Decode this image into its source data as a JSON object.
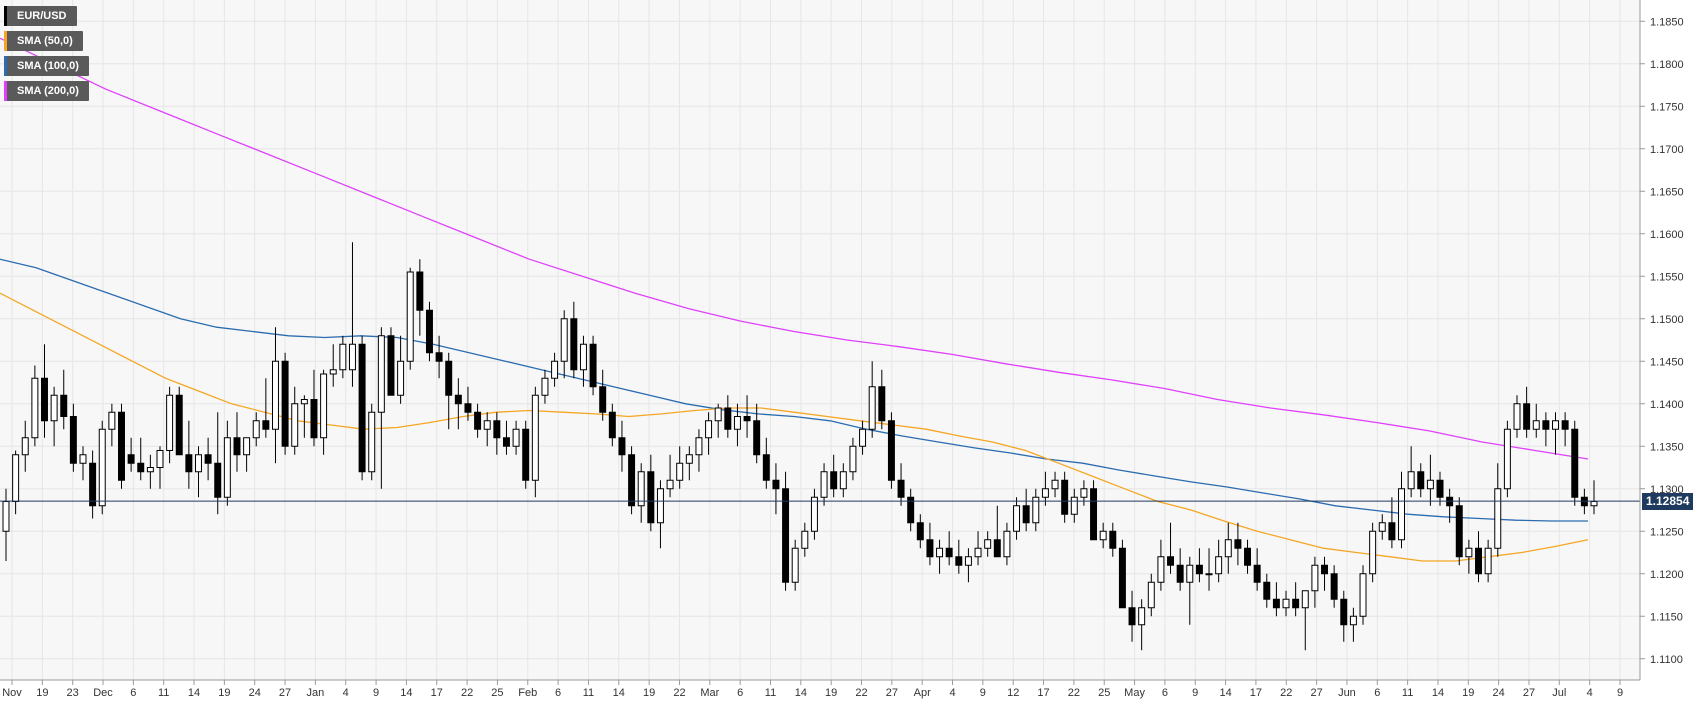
{
  "chart_data": {
    "type": "candlestick",
    "symbol": "EUR/USD",
    "ylim": [
      1.1075,
      1.1875
    ],
    "y_ticks": [
      "1.1100",
      "1.1150",
      "1.1200",
      "1.1250",
      "1.1300",
      "1.1350",
      "1.1400",
      "1.1450",
      "1.1500",
      "1.1550",
      "1.1600",
      "1.1650",
      "1.1700",
      "1.1750",
      "1.1800",
      "1.1850"
    ],
    "x_ticks": [
      "Nov",
      "19",
      "23",
      "Dec",
      "6",
      "11",
      "14",
      "19",
      "24",
      "27",
      "Jan",
      "4",
      "9",
      "14",
      "17",
      "22",
      "25",
      "Feb",
      "6",
      "11",
      "14",
      "19",
      "22",
      "Mar",
      "6",
      "11",
      "14",
      "19",
      "22",
      "27",
      "Apr",
      "4",
      "9",
      "12",
      "17",
      "22",
      "25",
      "May",
      "6",
      "9",
      "14",
      "17",
      "22",
      "27",
      "Jun",
      "6",
      "11",
      "14",
      "19",
      "24",
      "27",
      "Jul",
      "4",
      "9"
    ],
    "current_price": "1.12854",
    "grid": true,
    "legend": [
      {
        "label": "EUR/USD",
        "color": "#000000"
      },
      {
        "label": "SMA (50,0)",
        "color": "#f5a623"
      },
      {
        "label": "SMA (100,0)",
        "color": "#2b6cb0"
      },
      {
        "label": "SMA (200,0)",
        "color": "#e040fb"
      }
    ],
    "colors": {
      "up": "#ffffff",
      "down": "#000000",
      "wick": "#000000",
      "sma50": "#f5a623",
      "sma100": "#2b6cb0",
      "sma200": "#e040fb",
      "price_line": "#1e3a5f",
      "grid": "#e6e6e6",
      "background": "#f7f7f7"
    },
    "candles": [
      [
        1.125,
        1.13,
        1.1215,
        1.1285
      ],
      [
        1.1285,
        1.1345,
        1.127,
        1.134
      ],
      [
        1.134,
        1.138,
        1.132,
        1.136
      ],
      [
        1.136,
        1.1445,
        1.135,
        1.143
      ],
      [
        1.143,
        1.147,
        1.136,
        1.138
      ],
      [
        1.138,
        1.142,
        1.135,
        1.141
      ],
      [
        1.141,
        1.144,
        1.137,
        1.1385
      ],
      [
        1.1385,
        1.14,
        1.132,
        1.133
      ],
      [
        1.133,
        1.135,
        1.131,
        1.134
      ],
      [
        1.133,
        1.1345,
        1.1265,
        1.128
      ],
      [
        1.128,
        1.138,
        1.127,
        1.137
      ],
      [
        1.137,
        1.14,
        1.135,
        1.139
      ],
      [
        1.139,
        1.14,
        1.13,
        1.131
      ],
      [
        1.134,
        1.136,
        1.132,
        1.133
      ],
      [
        1.133,
        1.136,
        1.131,
        1.132
      ],
      [
        1.132,
        1.134,
        1.13,
        1.1325
      ],
      [
        1.1325,
        1.135,
        1.13,
        1.1345
      ],
      [
        1.1345,
        1.142,
        1.133,
        1.141
      ],
      [
        1.141,
        1.142,
        1.134,
        1.134
      ],
      [
        1.134,
        1.138,
        1.13,
        1.132
      ],
      [
        1.132,
        1.135,
        1.129,
        1.134
      ],
      [
        1.134,
        1.136,
        1.131,
        1.133
      ],
      [
        1.133,
        1.139,
        1.127,
        1.129
      ],
      [
        1.129,
        1.138,
        1.128,
        1.136
      ],
      [
        1.136,
        1.139,
        1.132,
        1.134
      ],
      [
        1.134,
        1.136,
        1.132,
        1.136
      ],
      [
        1.136,
        1.139,
        1.135,
        1.138
      ],
      [
        1.138,
        1.143,
        1.136,
        1.137
      ],
      [
        1.137,
        1.149,
        1.133,
        1.145
      ],
      [
        1.145,
        1.146,
        1.134,
        1.135
      ],
      [
        1.135,
        1.142,
        1.134,
        1.14
      ],
      [
        1.14,
        1.141,
        1.136,
        1.1405
      ],
      [
        1.1405,
        1.144,
        1.135,
        1.136
      ],
      [
        1.136,
        1.144,
        1.134,
        1.1435
      ],
      [
        1.1435,
        1.147,
        1.142,
        1.144
      ],
      [
        1.144,
        1.148,
        1.143,
        1.147
      ],
      [
        1.144,
        1.159,
        1.142,
        1.147
      ],
      [
        1.147,
        1.148,
        1.131,
        1.132
      ],
      [
        1.132,
        1.14,
        1.131,
        1.139
      ],
      [
        1.139,
        1.149,
        1.13,
        1.148
      ],
      [
        1.148,
        1.149,
        1.141,
        1.141
      ],
      [
        1.141,
        1.148,
        1.14,
        1.145
      ],
      [
        1.145,
        1.156,
        1.144,
        1.1555
      ],
      [
        1.1555,
        1.157,
        1.148,
        1.151
      ],
      [
        1.151,
        1.152,
        1.145,
        1.146
      ],
      [
        1.146,
        1.148,
        1.143,
        1.145
      ],
      [
        1.145,
        1.146,
        1.137,
        1.141
      ],
      [
        1.141,
        1.143,
        1.137,
        1.14
      ],
      [
        1.14,
        1.142,
        1.138,
        1.139
      ],
      [
        1.139,
        1.14,
        1.136,
        1.137
      ],
      [
        1.137,
        1.139,
        1.135,
        1.138
      ],
      [
        1.138,
        1.139,
        1.134,
        1.136
      ],
      [
        1.136,
        1.138,
        1.134,
        1.135
      ],
      [
        1.135,
        1.138,
        1.134,
        1.137
      ],
      [
        1.137,
        1.138,
        1.13,
        1.131
      ],
      [
        1.131,
        1.142,
        1.129,
        1.141
      ],
      [
        1.141,
        1.144,
        1.14,
        1.143
      ],
      [
        1.143,
        1.146,
        1.142,
        1.145
      ],
      [
        1.145,
        1.151,
        1.143,
        1.15
      ],
      [
        1.15,
        1.152,
        1.143,
        1.144
      ],
      [
        1.144,
        1.148,
        1.142,
        1.147
      ],
      [
        1.147,
        1.148,
        1.141,
        1.142
      ],
      [
        1.142,
        1.144,
        1.138,
        1.139
      ],
      [
        1.139,
        1.14,
        1.135,
        1.136
      ],
      [
        1.136,
        1.138,
        1.132,
        1.134
      ],
      [
        1.134,
        1.135,
        1.127,
        1.128
      ],
      [
        1.128,
        1.133,
        1.126,
        1.132
      ],
      [
        1.132,
        1.134,
        1.125,
        1.126
      ],
      [
        1.126,
        1.131,
        1.123,
        1.13
      ],
      [
        1.13,
        1.134,
        1.129,
        1.131
      ],
      [
        1.131,
        1.135,
        1.13,
        1.133
      ],
      [
        1.133,
        1.135,
        1.131,
        1.134
      ],
      [
        1.134,
        1.137,
        1.132,
        1.136
      ],
      [
        1.136,
        1.139,
        1.134,
        1.138
      ],
      [
        1.138,
        1.14,
        1.136,
        1.1395
      ],
      [
        1.1395,
        1.141,
        1.136,
        1.137
      ],
      [
        1.137,
        1.14,
        1.135,
        1.1385
      ],
      [
        1.1385,
        1.141,
        1.136,
        1.138
      ],
      [
        1.138,
        1.14,
        1.133,
        1.134
      ],
      [
        1.134,
        1.136,
        1.13,
        1.131
      ],
      [
        1.131,
        1.133,
        1.127,
        1.13
      ],
      [
        1.13,
        1.132,
        1.118,
        1.119
      ],
      [
        1.119,
        1.124,
        1.118,
        1.123
      ],
      [
        1.123,
        1.126,
        1.122,
        1.125
      ],
      [
        1.125,
        1.13,
        1.124,
        1.129
      ],
      [
        1.129,
        1.133,
        1.128,
        1.132
      ],
      [
        1.132,
        1.134,
        1.129,
        1.13
      ],
      [
        1.13,
        1.133,
        1.129,
        1.132
      ],
      [
        1.132,
        1.136,
        1.131,
        1.135
      ],
      [
        1.135,
        1.138,
        1.134,
        1.137
      ],
      [
        1.137,
        1.145,
        1.136,
        1.142
      ],
      [
        1.142,
        1.144,
        1.137,
        1.138
      ],
      [
        1.138,
        1.139,
        1.13,
        1.131
      ],
      [
        1.131,
        1.133,
        1.128,
        1.129
      ],
      [
        1.129,
        1.13,
        1.125,
        1.126
      ],
      [
        1.126,
        1.127,
        1.123,
        1.124
      ],
      [
        1.124,
        1.126,
        1.121,
        1.122
      ],
      [
        1.122,
        1.124,
        1.12,
        1.123
      ],
      [
        1.123,
        1.125,
        1.121,
        1.122
      ],
      [
        1.122,
        1.124,
        1.12,
        1.121
      ],
      [
        1.121,
        1.123,
        1.119,
        1.122
      ],
      [
        1.122,
        1.125,
        1.121,
        1.123
      ],
      [
        1.123,
        1.125,
        1.122,
        1.124
      ],
      [
        1.124,
        1.128,
        1.122,
        1.122
      ],
      [
        1.122,
        1.126,
        1.121,
        1.125
      ],
      [
        1.125,
        1.129,
        1.124,
        1.128
      ],
      [
        1.128,
        1.13,
        1.125,
        1.126
      ],
      [
        1.126,
        1.13,
        1.125,
        1.129
      ],
      [
        1.129,
        1.132,
        1.128,
        1.13
      ],
      [
        1.13,
        1.132,
        1.129,
        1.131
      ],
      [
        1.131,
        1.132,
        1.126,
        1.127
      ],
      [
        1.127,
        1.13,
        1.126,
        1.129
      ],
      [
        1.129,
        1.131,
        1.128,
        1.13
      ],
      [
        1.13,
        1.131,
        1.124,
        1.124
      ],
      [
        1.124,
        1.126,
        1.123,
        1.125
      ],
      [
        1.125,
        1.126,
        1.122,
        1.123
      ],
      [
        1.123,
        1.124,
        1.116,
        1.116
      ],
      [
        1.116,
        1.118,
        1.112,
        1.114
      ],
      [
        1.114,
        1.117,
        1.111,
        1.116
      ],
      [
        1.116,
        1.12,
        1.115,
        1.119
      ],
      [
        1.119,
        1.124,
        1.118,
        1.122
      ],
      [
        1.122,
        1.126,
        1.12,
        1.121
      ],
      [
        1.121,
        1.123,
        1.118,
        1.119
      ],
      [
        1.119,
        1.122,
        1.114,
        1.121
      ],
      [
        1.121,
        1.123,
        1.119,
        1.12
      ],
      [
        1.12,
        1.123,
        1.118,
        1.12
      ],
      [
        1.12,
        1.124,
        1.119,
        1.122
      ],
      [
        1.122,
        1.126,
        1.12,
        1.124
      ],
      [
        1.124,
        1.126,
        1.121,
        1.123
      ],
      [
        1.123,
        1.124,
        1.12,
        1.121
      ],
      [
        1.121,
        1.123,
        1.118,
        1.119
      ],
      [
        1.119,
        1.12,
        1.116,
        1.117
      ],
      [
        1.117,
        1.119,
        1.115,
        1.116
      ],
      [
        1.116,
        1.118,
        1.115,
        1.117
      ],
      [
        1.117,
        1.119,
        1.115,
        1.116
      ],
      [
        1.116,
        1.118,
        1.111,
        1.118
      ],
      [
        1.118,
        1.122,
        1.116,
        1.121
      ],
      [
        1.121,
        1.122,
        1.118,
        1.12
      ],
      [
        1.12,
        1.121,
        1.116,
        1.117
      ],
      [
        1.117,
        1.118,
        1.112,
        1.114
      ],
      [
        1.114,
        1.116,
        1.112,
        1.115
      ],
      [
        1.115,
        1.121,
        1.114,
        1.12
      ],
      [
        1.12,
        1.126,
        1.119,
        1.125
      ],
      [
        1.125,
        1.127,
        1.124,
        1.126
      ],
      [
        1.126,
        1.129,
        1.123,
        1.124
      ],
      [
        1.124,
        1.132,
        1.123,
        1.13
      ],
      [
        1.13,
        1.135,
        1.129,
        1.132
      ],
      [
        1.132,
        1.133,
        1.129,
        1.13
      ],
      [
        1.13,
        1.134,
        1.128,
        1.131
      ],
      [
        1.131,
        1.132,
        1.128,
        1.129
      ],
      [
        1.129,
        1.13,
        1.126,
        1.128
      ],
      [
        1.128,
        1.129,
        1.121,
        1.122
      ],
      [
        1.122,
        1.124,
        1.12,
        1.123
      ],
      [
        1.123,
        1.125,
        1.119,
        1.12
      ],
      [
        1.12,
        1.124,
        1.119,
        1.123
      ],
      [
        1.123,
        1.133,
        1.122,
        1.13
      ],
      [
        1.13,
        1.138,
        1.129,
        1.137
      ],
      [
        1.137,
        1.141,
        1.136,
        1.14
      ],
      [
        1.14,
        1.142,
        1.136,
        1.137
      ],
      [
        1.137,
        1.14,
        1.136,
        1.138
      ],
      [
        1.138,
        1.139,
        1.135,
        1.137
      ],
      [
        1.137,
        1.139,
        1.134,
        1.138
      ],
      [
        1.138,
        1.139,
        1.135,
        1.137
      ],
      [
        1.137,
        1.138,
        1.128,
        1.129
      ],
      [
        1.129,
        1.13,
        1.127,
        1.128
      ],
      [
        1.128,
        1.131,
        1.127,
        1.1285
      ]
    ],
    "sma50": [
      1.153,
      1.151,
      1.149,
      1.147,
      1.145,
      1.143,
      1.1415,
      1.14,
      1.139,
      1.138,
      1.1375,
      1.137,
      1.1372,
      1.1378,
      1.1385,
      1.139,
      1.1392,
      1.139,
      1.1388,
      1.1385,
      1.1388,
      1.1392,
      1.1395,
      1.1395,
      1.139,
      1.1385,
      1.138,
      1.1375,
      1.137,
      1.1362,
      1.1355,
      1.1345,
      1.133,
      1.1315,
      1.13,
      1.1285,
      1.1275,
      1.1262,
      1.125,
      1.124,
      1.123,
      1.1225,
      1.122,
      1.1215,
      1.1215,
      1.122,
      1.1225,
      1.1232,
      1.124
    ],
    "sma100": [
      1.157,
      1.156,
      1.1545,
      1.153,
      1.1515,
      1.15,
      1.149,
      1.1485,
      1.148,
      1.1478,
      1.148,
      1.1478,
      1.147,
      1.146,
      1.145,
      1.144,
      1.143,
      1.142,
      1.141,
      1.14,
      1.1393,
      1.1388,
      1.1385,
      1.138,
      1.137,
      1.1362,
      1.1355,
      1.1348,
      1.1342,
      1.1335,
      1.133,
      1.1322,
      1.1315,
      1.1308,
      1.1302,
      1.1295,
      1.1288,
      1.128,
      1.1275,
      1.127,
      1.1267,
      1.1265,
      1.1263,
      1.1262,
      1.1262
    ],
    "sma200": [
      1.183,
      1.18,
      1.177,
      1.1745,
      1.172,
      1.1695,
      1.167,
      1.1645,
      1.162,
      1.1595,
      1.157,
      1.155,
      1.153,
      1.1512,
      1.1497,
      1.1485,
      1.1475,
      1.1467,
      1.1458,
      1.1447,
      1.1437,
      1.1428,
      1.1418,
      1.1405,
      1.1395,
      1.1387,
      1.1378,
      1.1368,
      1.1355,
      1.1345,
      1.1335
    ]
  }
}
